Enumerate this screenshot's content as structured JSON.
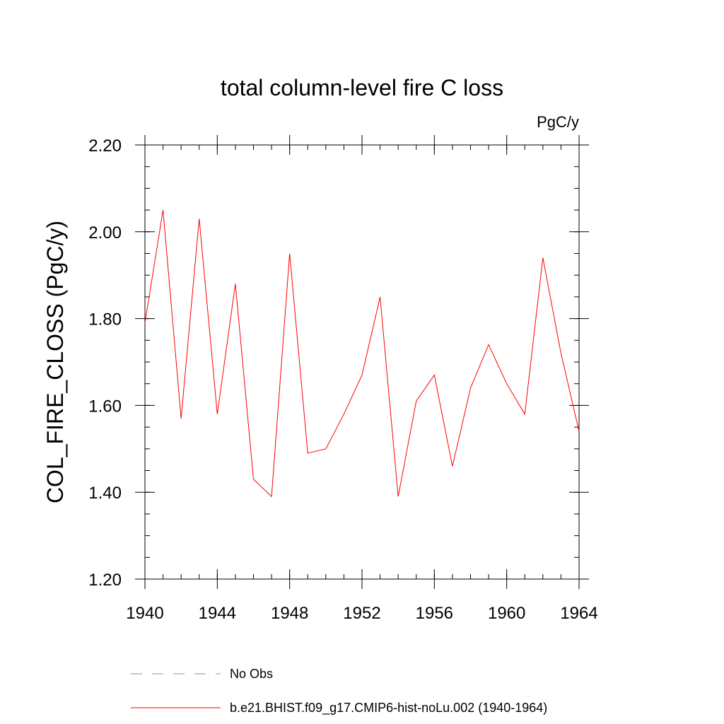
{
  "chart_data": {
    "type": "line",
    "title": "total column-level fire C loss",
    "units_label": "PgC/y",
    "ylabel": "COL_FIRE_CLOSS  (PgC/y)",
    "xlabel": "",
    "xlim": [
      1940,
      1964
    ],
    "ylim": [
      1.2,
      2.2
    ],
    "x_ticks": [
      1940,
      1944,
      1948,
      1952,
      1956,
      1960,
      1964
    ],
    "x_tick_labels": [
      "1940",
      "1944",
      "1948",
      "1952",
      "1956",
      "1960",
      "1964"
    ],
    "y_ticks": [
      1.2,
      1.4,
      1.6,
      1.8,
      2.0,
      2.2
    ],
    "y_tick_labels": [
      "1.20",
      "1.40",
      "1.60",
      "1.80",
      "2.00",
      "2.20"
    ],
    "grid": false,
    "legend_position": "bottom",
    "series": [
      {
        "name": "b.e21.BHIST.f09_g17.CMIP6-hist-noLu.002 (1940-1964)",
        "color": "#ff0000",
        "style": "solid",
        "x": [
          1940,
          1941,
          1942,
          1943,
          1944,
          1945,
          1946,
          1947,
          1948,
          1949,
          1950,
          1951,
          1952,
          1953,
          1954,
          1955,
          1956,
          1957,
          1958,
          1959,
          1960,
          1961,
          1962,
          1963,
          1964
        ],
        "y": [
          1.79,
          2.05,
          1.57,
          2.03,
          1.58,
          1.88,
          1.43,
          1.39,
          1.95,
          1.49,
          1.5,
          1.58,
          1.67,
          1.85,
          1.39,
          1.61,
          1.67,
          1.46,
          1.64,
          1.74,
          1.65,
          1.58,
          1.94,
          1.72,
          1.54
        ]
      }
    ],
    "legend": [
      {
        "label": "No Obs",
        "color": "#8888cc",
        "style": "dashed"
      },
      {
        "label": "b.e21.BHIST.f09_g17.CMIP6-hist-noLu.002 (1940-1964)",
        "color": "#ff0000",
        "style": "solid"
      }
    ]
  }
}
